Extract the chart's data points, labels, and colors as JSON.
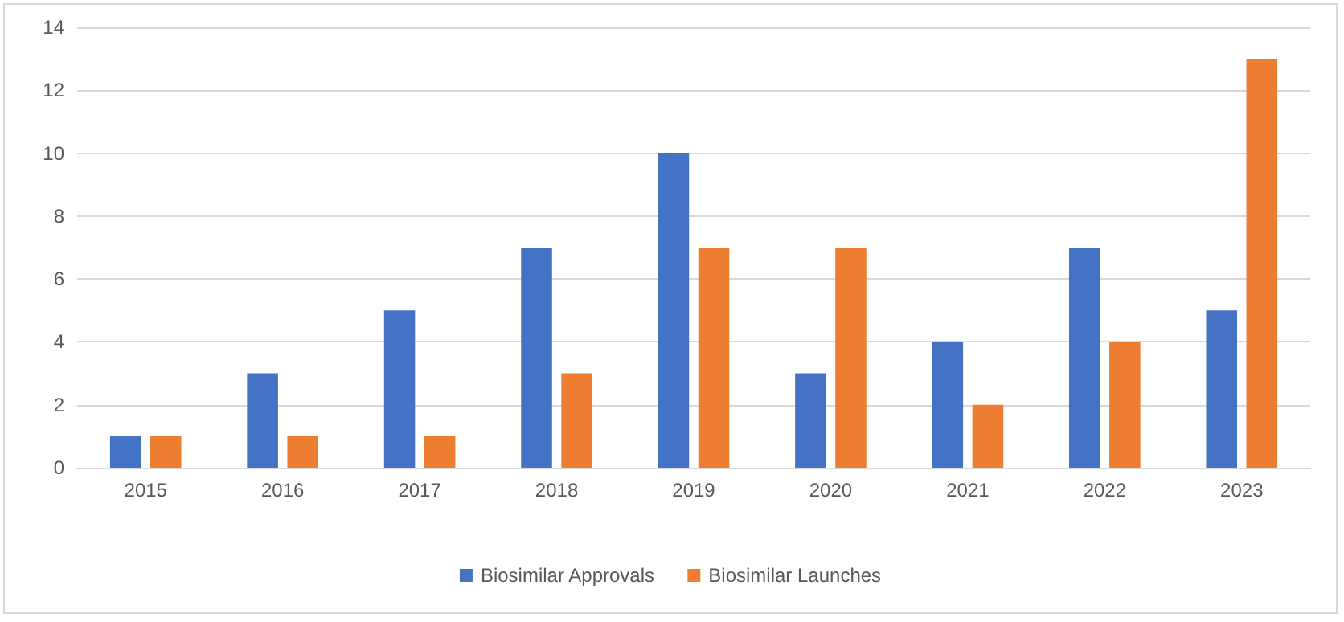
{
  "chart_data": {
    "type": "bar",
    "categories": [
      "2015",
      "2016",
      "2017",
      "2018",
      "2019",
      "2020",
      "2021",
      "2022",
      "2023"
    ],
    "series": [
      {
        "name": "Biosimilar Approvals",
        "color": "#4472c4",
        "values": [
          1,
          3,
          5,
          7,
          10,
          3,
          4,
          7,
          5
        ]
      },
      {
        "name": "Biosimilar Launches",
        "color": "#ed7d31",
        "values": [
          1,
          1,
          1,
          3,
          7,
          7,
          2,
          4,
          13
        ]
      }
    ],
    "ylim": [
      0,
      14
    ],
    "yticks": [
      0,
      2,
      4,
      6,
      8,
      10,
      12,
      14
    ],
    "grid": "y",
    "legend": "bottom"
  }
}
